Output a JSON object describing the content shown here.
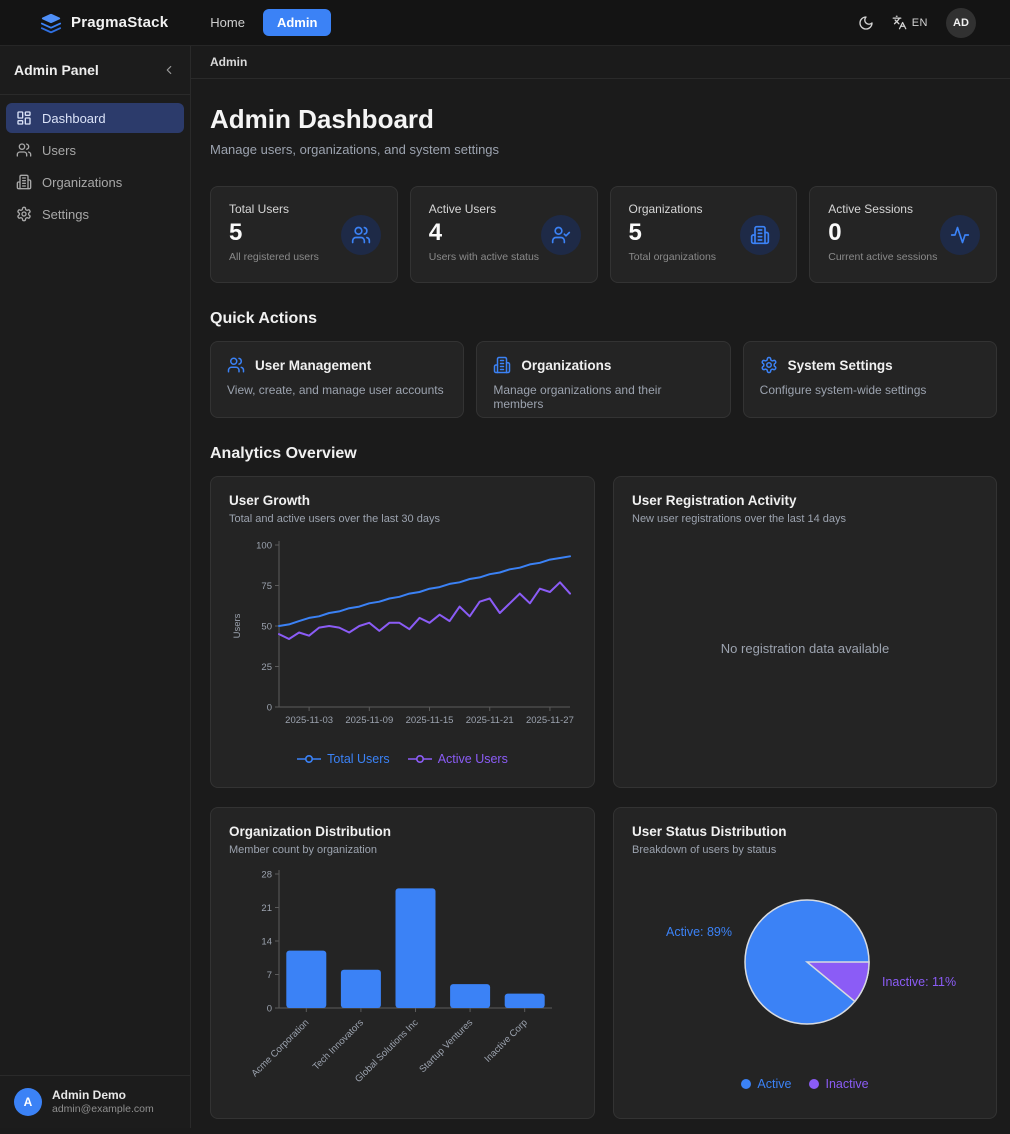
{
  "navbar": {
    "brand": "PragmaStack",
    "brand_icon": "layers-icon",
    "links": [
      {
        "label": "Home",
        "active": false
      },
      {
        "label": "Admin",
        "active": true
      }
    ],
    "theme_icon": "moon-icon",
    "language_icon": "translate-icon",
    "language": "EN",
    "avatar_initials": "AD"
  },
  "sidebar": {
    "title": "Admin Panel",
    "collapse_icon": "chevron-left-icon",
    "items": [
      {
        "label": "Dashboard",
        "icon": "dashboard-icon",
        "active": true
      },
      {
        "label": "Users",
        "icon": "users-icon",
        "active": false
      },
      {
        "label": "Organizations",
        "icon": "building-icon",
        "active": false
      },
      {
        "label": "Settings",
        "icon": "gear-icon",
        "active": false
      }
    ],
    "user": {
      "initial": "A",
      "name": "Admin Demo",
      "email": "admin@example.com"
    }
  },
  "breadcrumb": "Admin",
  "header": {
    "title": "Admin Dashboard",
    "subtitle": "Manage users, organizations, and system settings"
  },
  "stats": [
    {
      "label": "Total Users",
      "value": "5",
      "description": "All registered users",
      "icon": "users-icon"
    },
    {
      "label": "Active Users",
      "value": "4",
      "description": "Users with active status",
      "icon": "user-check-icon"
    },
    {
      "label": "Organizations",
      "value": "5",
      "description": "Total organizations",
      "icon": "building-icon"
    },
    {
      "label": "Active Sessions",
      "value": "0",
      "description": "Current active sessions",
      "icon": "activity-icon"
    }
  ],
  "quick_actions": {
    "heading": "Quick Actions",
    "cards": [
      {
        "title": "User Management",
        "description": "View, create, and manage user accounts",
        "icon": "users-icon"
      },
      {
        "title": "Organizations",
        "description": "Manage organizations and their members",
        "icon": "building-icon"
      },
      {
        "title": "System Settings",
        "description": "Configure system-wide settings",
        "icon": "gear-icon"
      }
    ]
  },
  "analytics": {
    "heading": "Analytics Overview"
  },
  "colors": {
    "accent": "#3b82f6",
    "purple": "#8b5cf6",
    "active_item_bg": "#2c3b6b"
  },
  "chart_data": [
    {
      "type": "line",
      "title": "User Growth",
      "subtitle": "Total and active users over the last 30 days",
      "ylabel": "Users",
      "ylim": [
        0,
        100
      ],
      "y_ticks": [
        0,
        25,
        50,
        75,
        100
      ],
      "grid": false,
      "legend_position": "bottom",
      "x": [
        "2025-10-31",
        "2025-11-01",
        "2025-11-02",
        "2025-11-03",
        "2025-11-04",
        "2025-11-05",
        "2025-11-06",
        "2025-11-07",
        "2025-11-08",
        "2025-11-09",
        "2025-11-10",
        "2025-11-11",
        "2025-11-12",
        "2025-11-13",
        "2025-11-14",
        "2025-11-15",
        "2025-11-16",
        "2025-11-17",
        "2025-11-18",
        "2025-11-19",
        "2025-11-20",
        "2025-11-21",
        "2025-11-22",
        "2025-11-23",
        "2025-11-24",
        "2025-11-25",
        "2025-11-26",
        "2025-11-27",
        "2025-11-28",
        "2025-11-29"
      ],
      "x_tick_indices": [
        3,
        9,
        15,
        21,
        27
      ],
      "series": [
        {
          "name": "Total Users",
          "color": "#3b82f6",
          "values": [
            50,
            51,
            53,
            55,
            56,
            58,
            59,
            61,
            62,
            64,
            65,
            67,
            68,
            70,
            71,
            73,
            74,
            76,
            77,
            79,
            80,
            82,
            83,
            85,
            86,
            88,
            89,
            91,
            92,
            93
          ]
        },
        {
          "name": "Active Users",
          "color": "#8b5cf6",
          "values": [
            45,
            42,
            46,
            44,
            49,
            50,
            49,
            46,
            50,
            52,
            47,
            52,
            52,
            48,
            55,
            52,
            57,
            53,
            62,
            56,
            65,
            67,
            58,
            64,
            70,
            64,
            73,
            71,
            77,
            70
          ]
        }
      ]
    },
    {
      "type": "line",
      "title": "User Registration Activity",
      "subtitle": "New user registrations over the last 14 days",
      "series": [],
      "note": "No registration data available"
    },
    {
      "type": "bar",
      "title": "Organization Distribution",
      "subtitle": "Member count by organization",
      "categories": [
        "Acme Corporation",
        "Tech Innovators",
        "Global Solutions Inc",
        "Startup Ventures",
        "Inactive Corp"
      ],
      "values": [
        12,
        8,
        25,
        5,
        3
      ],
      "ylim": [
        0,
        28
      ],
      "y_ticks": [
        0,
        7,
        14,
        21,
        28
      ],
      "bar_color": "#3b82f6",
      "grid": false
    },
    {
      "type": "pie",
      "title": "User Status Distribution",
      "subtitle": "Breakdown of users by status",
      "slices": [
        {
          "name": "Active",
          "pct": 89,
          "color": "#3b82f6",
          "label": "Active: 89%"
        },
        {
          "name": "Inactive",
          "pct": 11,
          "color": "#8b5cf6",
          "label": "Inactive: 11%"
        }
      ],
      "legend_position": "bottom"
    }
  ]
}
